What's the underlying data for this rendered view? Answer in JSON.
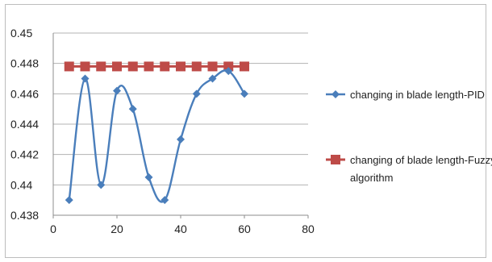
{
  "chart_data": {
    "type": "line",
    "title": "",
    "xlabel": "",
    "ylabel": "",
    "xlim": [
      0,
      80
    ],
    "ylim": [
      0.438,
      0.45
    ],
    "x_ticks": [
      "0",
      "20",
      "40",
      "60",
      "80"
    ],
    "y_ticks": [
      "0.438",
      "0.44",
      "0.442",
      "0.444",
      "0.446",
      "0.448",
      "0.45"
    ],
    "grid": "horizontal",
    "legend_position": "right",
    "series": [
      {
        "name": "changing in blade length-PID",
        "legend_lines": [
          "changing in blade length-PID"
        ],
        "color": "#4a7ebb",
        "marker": "diamond",
        "smooth": true,
        "x": [
          5,
          10,
          15,
          20,
          25,
          30,
          35,
          40,
          45,
          50,
          55,
          60
        ],
        "y": [
          0.439,
          0.447,
          0.44,
          0.4462,
          0.445,
          0.4405,
          0.439,
          0.443,
          0.446,
          0.447,
          0.4475,
          0.446
        ]
      },
      {
        "name": "changing of blade length-Fuzzy algorithm",
        "legend_lines": [
          "changing of blade length-Fuzzy",
          "algorithm"
        ],
        "color": "#be4b48",
        "marker": "square",
        "smooth": false,
        "x": [
          5,
          10,
          15,
          20,
          25,
          30,
          35,
          40,
          45,
          50,
          55,
          60
        ],
        "y": [
          0.4478,
          0.4478,
          0.4478,
          0.4478,
          0.4478,
          0.4478,
          0.4478,
          0.4478,
          0.4478,
          0.4478,
          0.4478,
          0.4478
        ]
      }
    ]
  }
}
